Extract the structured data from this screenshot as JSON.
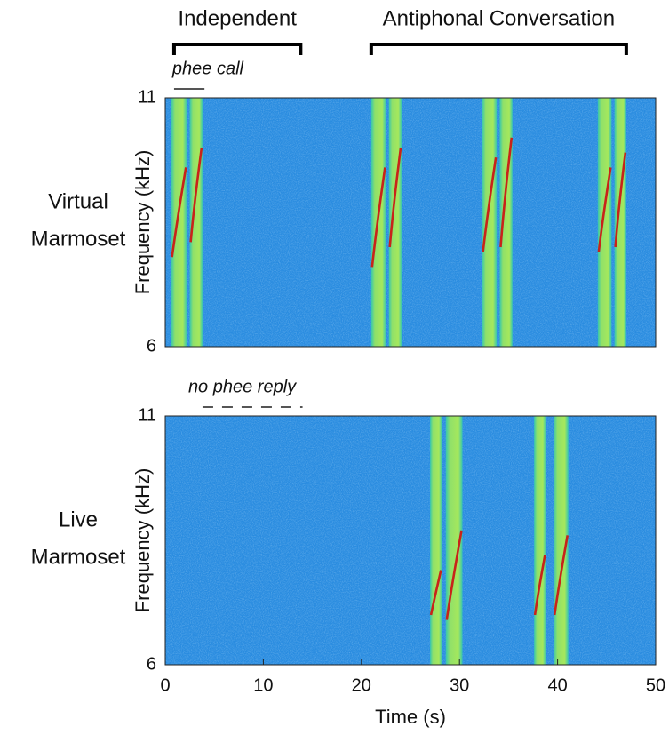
{
  "chart_data": [
    {
      "type": "spectrogram",
      "row_label": [
        "Virtual",
        "Marmoset"
      ],
      "ylabel": "Frequency (kHz)",
      "xlim": [
        0,
        50
      ],
      "ylim": [
        6,
        11
      ],
      "yticks": [
        6,
        11
      ],
      "annotations": [
        {
          "text": "Independent",
          "kind": "bracket",
          "x": [
            0.9,
            13.8
          ]
        },
        {
          "text": "Antiphonal Conversation",
          "kind": "bracket",
          "x": [
            21,
            47
          ]
        },
        {
          "text": "phee call",
          "kind": "solid",
          "x": [
            0.9,
            4.0
          ]
        }
      ],
      "pulses": [
        {
          "start": 0.6,
          "end": 2.2,
          "f_start": 7.8,
          "f_end": 9.6
        },
        {
          "start": 2.5,
          "end": 3.8,
          "f_start": 8.1,
          "f_end": 10.0
        },
        {
          "start": 21.0,
          "end": 22.5,
          "f_start": 7.6,
          "f_end": 9.6
        },
        {
          "start": 22.8,
          "end": 24.1,
          "f_start": 8.0,
          "f_end": 10.0
        },
        {
          "start": 32.3,
          "end": 33.8,
          "f_start": 7.9,
          "f_end": 9.8
        },
        {
          "start": 34.1,
          "end": 35.4,
          "f_start": 8.0,
          "f_end": 10.2
        },
        {
          "start": 44.1,
          "end": 45.5,
          "f_start": 7.9,
          "f_end": 9.6
        },
        {
          "start": 45.8,
          "end": 47.0,
          "f_start": 8.0,
          "f_end": 9.9
        }
      ]
    },
    {
      "type": "spectrogram",
      "row_label": [
        "Live",
        "Marmoset"
      ],
      "ylabel": "Frequency (kHz)",
      "xlabel": "Time (s)",
      "xlim": [
        0,
        50
      ],
      "xticks": [
        0,
        10,
        20,
        30,
        40,
        50
      ],
      "ylim": [
        6,
        11
      ],
      "yticks": [
        6,
        11
      ],
      "annotations": [
        {
          "text": "no phee reply",
          "kind": "dashed",
          "x": [
            3.8,
            14
          ]
        }
      ],
      "pulses": [
        {
          "start": 27.0,
          "end": 28.2,
          "f_start": 7.0,
          "f_end": 7.9
        },
        {
          "start": 28.6,
          "end": 30.3,
          "f_start": 6.9,
          "f_end": 8.7
        },
        {
          "start": 37.6,
          "end": 38.8,
          "f_start": 7.0,
          "f_end": 8.2
        },
        {
          "start": 39.6,
          "end": 41.1,
          "f_start": 7.0,
          "f_end": 8.6
        }
      ]
    }
  ]
}
